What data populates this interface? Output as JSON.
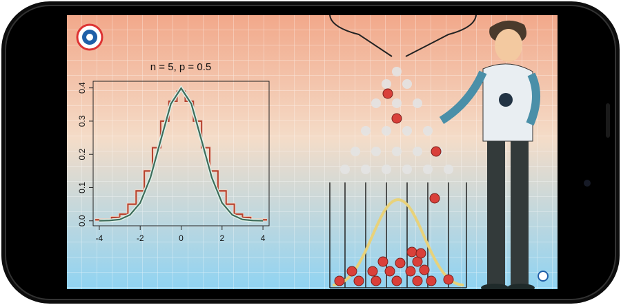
{
  "chart_data": {
    "type": "line",
    "title": "n = 5, p = 0.5",
    "xlim": [
      -4.3,
      4.3
    ],
    "xticks": [
      -4,
      -2,
      0,
      2,
      4
    ],
    "ylim": [
      -0.015,
      0.42
    ],
    "yticks": [
      {
        "value": 0,
        "label": "0.0"
      },
      0.1,
      0.2,
      0.3,
      0.4
    ],
    "series": [
      {
        "color": "#b5422f",
        "bins": [
          -4.2,
          -3.4,
          -3.0,
          -2.6,
          -2.2,
          -1.8,
          -1.4,
          -1.0,
          -0.6,
          -0.2,
          0.2,
          0.6,
          1.0,
          1.4,
          1.8,
          2.2,
          2.6,
          3.0,
          3.4,
          4.2
        ],
        "values": [
          0.003,
          0.01,
          0.02,
          0.05,
          0.09,
          0.15,
          0.22,
          0.3,
          0.36,
          0.39,
          0.36,
          0.3,
          0.22,
          0.15,
          0.09,
          0.05,
          0.02,
          0.01,
          0.003
        ]
      },
      {
        "color": "#3d6b5a",
        "x": [
          -4,
          -3.5,
          -3,
          -2.5,
          -2,
          -1.5,
          -1,
          -0.5,
          0,
          0.5,
          1,
          1.5,
          2,
          2.5,
          3,
          3.5,
          4
        ],
        "values": [
          0.0001,
          0.001,
          0.004,
          0.018,
          0.054,
          0.13,
          0.242,
          0.352,
          0.399,
          0.352,
          0.242,
          0.13,
          0.054,
          0.018,
          0.004,
          0.001,
          0.0001
        ]
      }
    ]
  }
}
